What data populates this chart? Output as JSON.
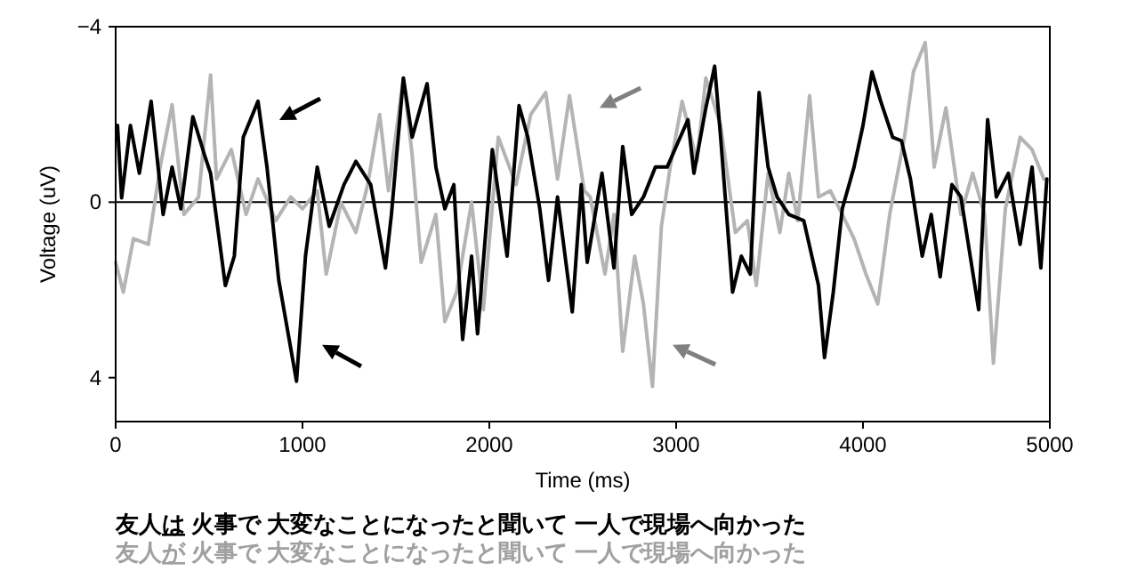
{
  "chart_data": {
    "type": "line",
    "xlabel": "Time (ms)",
    "ylabel": "Voltage (uV)",
    "xlim": [
      0,
      5000
    ],
    "xticks": [
      0,
      1000,
      2000,
      3000,
      4000,
      5000
    ],
    "ylim": [
      5,
      -4
    ],
    "yticks": [
      -4,
      0,
      4
    ],
    "ref_lines": [
      {
        "axis": "y",
        "value": 0,
        "color": "#000000"
      }
    ],
    "annotations": [
      "友人は 火事で 大変なことになったと聞いて 一人で現場へ向かった",
      "友人が 火事で 大変なことになったと聞いて 一人で現場へ向かった"
    ],
    "series": [
      {
        "color": "#b4b4b4",
        "x": [
          0,
          41,
          95,
          175,
          238,
          302,
          365,
          444,
          508,
          540,
          619,
          698,
          762,
          857,
          937,
          1000,
          1079,
          1127,
          1206,
          1286,
          1349,
          1413,
          1460,
          1540,
          1587,
          1635,
          1714,
          1762,
          1825,
          1905,
          1968,
          2048,
          2143,
          2222,
          2302,
          2365,
          2429,
          2508,
          2540,
          2619,
          2667,
          2714,
          2778,
          2825,
          2873,
          2921,
          2968,
          3032,
          3111,
          3159,
          3238,
          3317,
          3381,
          3429,
          3492,
          3555,
          3603,
          3651,
          3714,
          3762,
          3825,
          3889,
          3952,
          4016,
          4079,
          4143,
          4222,
          4270,
          4333,
          4381,
          4444,
          4524,
          4587,
          4651,
          4698,
          4762,
          4841,
          4905,
          4968
        ],
        "values": [
          1.37,
          2.05,
          0.83,
          0.96,
          -0.8,
          -2.22,
          0.28,
          -0.12,
          -2.9,
          -0.53,
          -1.2,
          0.28,
          -0.53,
          0.42,
          -0.12,
          0.15,
          -0.26,
          1.64,
          0.01,
          0.69,
          -0.4,
          -2.0,
          -0.26,
          -2.83,
          -1.07,
          1.37,
          0.28,
          2.72,
          2.05,
          0.0,
          2.45,
          -1.48,
          -0.4,
          -2.0,
          -2.5,
          -0.53,
          -2.43,
          -0.26,
          -0.12,
          1.64,
          0.28,
          3.4,
          1.23,
          2.32,
          4.2,
          0.55,
          -0.8,
          -2.3,
          -0.93,
          -2.83,
          -1.75,
          0.69,
          0.42,
          1.9,
          -0.66,
          0.69,
          -0.66,
          0.42,
          -2.43,
          -0.12,
          -0.26,
          0.28,
          0.83,
          1.64,
          2.32,
          0.28,
          -1.48,
          -2.97,
          -3.64,
          -0.8,
          -2.15,
          0.28,
          -0.66,
          0.28,
          3.67,
          0.15,
          -1.48,
          -1.2,
          -0.53
        ]
      },
      {
        "color": "#000000",
        "x": [
          10,
          32,
          79,
          127,
          190,
          254,
          302,
          349,
          413,
          476,
          508,
          587,
          635,
          683,
          762,
          810,
          873,
          968,
          1016,
          1079,
          1143,
          1222,
          1286,
          1365,
          1444,
          1476,
          1540,
          1587,
          1667,
          1714,
          1762,
          1810,
          1857,
          1905,
          1937,
          2016,
          2095,
          2159,
          2206,
          2270,
          2317,
          2365,
          2444,
          2492,
          2524,
          2603,
          2667,
          2714,
          2762,
          2825,
          2889,
          2952,
          3000,
          3063,
          3095,
          3159,
          3206,
          3238,
          3302,
          3349,
          3397,
          3444,
          3492,
          3540,
          3603,
          3683,
          3762,
          3794,
          3841,
          3889,
          3952,
          4000,
          4048,
          4095,
          4159,
          4206,
          4254,
          4317,
          4365,
          4413,
          4476,
          4524,
          4619,
          4667,
          4714,
          4778,
          4841,
          4905,
          4952,
          4984
        ],
        "values": [
          -1.75,
          -0.1,
          -1.75,
          -0.66,
          -2.3,
          0.28,
          -0.8,
          0.15,
          -1.95,
          -1.07,
          -0.66,
          1.9,
          1.23,
          -1.48,
          -2.3,
          -0.8,
          1.78,
          4.08,
          1.23,
          -0.8,
          0.55,
          -0.4,
          -0.93,
          -0.4,
          1.5,
          0.28,
          -2.83,
          -1.48,
          -2.7,
          -0.8,
          0.15,
          -0.4,
          3.13,
          1.23,
          3.0,
          -1.2,
          1.23,
          -2.2,
          -1.48,
          0.15,
          1.78,
          -0.12,
          2.5,
          -0.4,
          1.37,
          -0.66,
          1.5,
          -1.27,
          0.28,
          -0.12,
          -0.8,
          -0.8,
          -1.27,
          -1.88,
          -0.66,
          -2.15,
          -3.1,
          -1.48,
          2.05,
          1.23,
          1.64,
          -2.5,
          -0.8,
          -0.12,
          0.28,
          0.42,
          1.9,
          3.54,
          2.05,
          0.15,
          -0.8,
          -1.75,
          -2.97,
          -2.3,
          -1.48,
          -1.4,
          -0.53,
          1.23,
          0.28,
          1.7,
          -0.4,
          -0.12,
          2.45,
          -1.88,
          -0.12,
          -0.66,
          0.96,
          -0.8,
          1.5,
          -0.53
        ]
      }
    ]
  }
}
